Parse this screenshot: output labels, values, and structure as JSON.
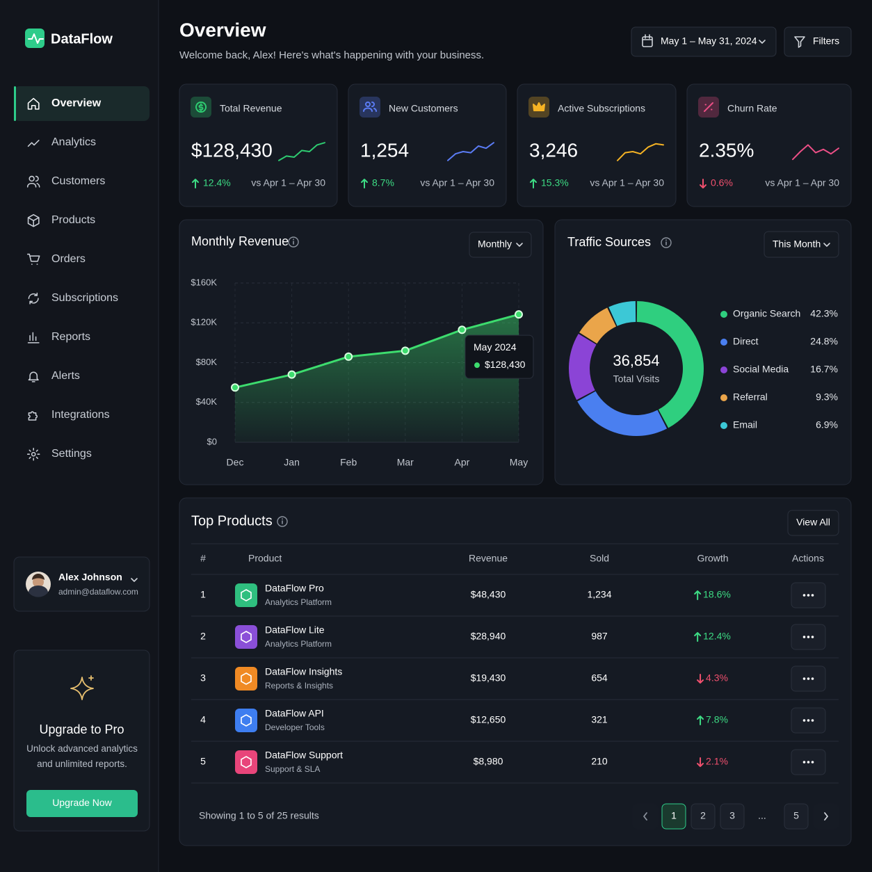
{
  "sidebar": {
    "brand": "DataFlow",
    "nav": [
      "Overview",
      "Analytics",
      "Customers",
      "Products",
      "Orders",
      "Subscriptions",
      "Reports",
      "Alerts",
      "Integrations",
      "Settings"
    ],
    "active": "Overview",
    "user": {
      "name": "Alex Johnson",
      "email": "admin@dataflow.com"
    },
    "upgrade": {
      "title": "Upgrade to Pro",
      "text": "Unlock advanced analytics and unlimited reports.",
      "button": "Upgrade Now"
    }
  },
  "header": {
    "title": "Overview",
    "subtitle": "Welcome back, Alex! Here's what's happening with your business.",
    "date_range": "May 1 – May 31, 2024",
    "filters": "Filters"
  },
  "kpis": [
    {
      "label": "Total Revenue",
      "value": "$128,430",
      "change": "12.4%",
      "trend": "up",
      "compare": "vs Apr 1 – Apr 30",
      "color": "#2ecc71"
    },
    {
      "label": "New Customers",
      "value": "1,254",
      "change": "8.7%",
      "trend": "up",
      "compare": "vs Apr 1 – Apr 30",
      "color": "#5b7cf5"
    },
    {
      "label": "Active Subscriptions",
      "value": "3,246",
      "change": "15.3%",
      "trend": "up",
      "compare": "vs Apr 1 – Apr 30",
      "color": "#f5b324"
    },
    {
      "label": "Churn Rate",
      "value": "2.35%",
      "change": "0.6%",
      "trend": "down",
      "compare": "vs Apr 1 – Apr 30",
      "color": "#ec4f86"
    }
  ],
  "chart_data": [
    {
      "type": "line",
      "title": "Monthly Revenue",
      "dropdown": "Monthly",
      "categories": [
        "Dec",
        "Jan",
        "Feb",
        "Mar",
        "Apr",
        "May"
      ],
      "values": [
        55000,
        68000,
        86000,
        92000,
        113000,
        128430
      ],
      "value_labels": [
        null,
        null,
        null,
        null,
        null,
        "$128,430"
      ],
      "tooltip_title": "May 2024",
      "color": "#3ddc6e",
      "ylim": [
        0,
        160000
      ],
      "yticks": [
        {
          "value": 0,
          "label": "$0"
        },
        {
          "value": 40000,
          "label": "$40K"
        },
        {
          "value": 80000,
          "label": "$80K"
        },
        {
          "value": 120000,
          "label": "$120K"
        },
        {
          "value": 160000,
          "label": "$160K"
        }
      ],
      "grid": true
    },
    {
      "type": "pie",
      "title": "Traffic Sources",
      "dropdown": "This Month",
      "center_value": "36,854",
      "center_label": "Total Visits",
      "categories": [
        "Organic Search",
        "Direct",
        "Social Media",
        "Referral",
        "Email"
      ],
      "values": [
        42.3,
        24.8,
        16.7,
        9.3,
        6.9
      ],
      "value_labels": [
        "42.3%",
        "24.8%",
        "16.7%",
        "9.3%",
        "6.9%"
      ],
      "colors": [
        "#2fcf7f",
        "#4a7ff0",
        "#8b44d6",
        "#eaa54a",
        "#3cc8d6"
      ]
    }
  ],
  "top_products": {
    "title": "Top Products",
    "view_all": "View All",
    "columns": [
      "#",
      "Product",
      "Revenue",
      "Sold",
      "Growth",
      "Actions"
    ],
    "rows": [
      {
        "rank": 1,
        "name": "DataFlow Pro",
        "category": "Analytics Platform",
        "revenue": "$48,430",
        "sold": "1,234",
        "growth": "18.6%",
        "trend": "up",
        "color": "#2fbf7f"
      },
      {
        "rank": 2,
        "name": "DataFlow Lite",
        "category": "Analytics Platform",
        "revenue": "$28,940",
        "sold": "987",
        "growth": "12.4%",
        "trend": "up",
        "color": "#8a4fd8"
      },
      {
        "rank": 3,
        "name": "DataFlow Insights",
        "category": "Reports & Insights",
        "revenue": "$19,430",
        "sold": "654",
        "growth": "4.3%",
        "trend": "down",
        "color": "#f08a24"
      },
      {
        "rank": 4,
        "name": "DataFlow API",
        "category": "Developer Tools",
        "revenue": "$12,650",
        "sold": "321",
        "growth": "7.8%",
        "trend": "up",
        "color": "#3e7ef0"
      },
      {
        "rank": 5,
        "name": "DataFlow Support",
        "category": "Support & SLA",
        "revenue": "$8,980",
        "sold": "210",
        "growth": "2.1%",
        "trend": "down",
        "color": "#e8457a"
      }
    ],
    "footer": "Showing 1 to 5 of 25 results",
    "pages": [
      "1",
      "2",
      "3",
      "...",
      "5"
    ],
    "current": "1"
  }
}
